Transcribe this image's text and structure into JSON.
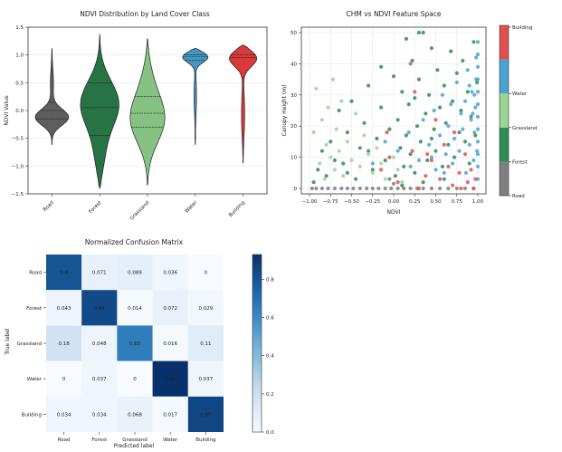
{
  "violin": {
    "type": "violin",
    "title": "NDVI Distribution by Land Cover Class",
    "ylabel": "NDVI Value",
    "ylim": [
      -1.5,
      1.5
    ],
    "yticks": [
      -1.5,
      -1.0,
      -0.5,
      0.0,
      0.5,
      1.0,
      1.5
    ],
    "ytick_labels": [
      "−1.5",
      "−1.0",
      "−0.5",
      "0.0",
      "0.5",
      "1.0",
      "1.5"
    ],
    "categories": [
      "Road",
      "Forest",
      "Grassland",
      "Water",
      "Building"
    ],
    "colors": [
      "#555555",
      "#1b6b3a",
      "#7fbf7b",
      "#3b8fbf",
      "#d62f2f"
    ],
    "quartiles": [
      [
        -0.15,
        0.0,
        0.15
      ],
      [
        -0.45,
        0.05,
        0.5
      ],
      [
        -0.3,
        -0.05,
        0.25
      ],
      [
        0.9,
        0.97,
        1.0
      ],
      [
        0.6,
        0.95,
        1.0
      ]
    ],
    "ranges": [
      [
        -0.62,
        1.12
      ],
      [
        -1.4,
        1.38
      ],
      [
        -1.35,
        1.3
      ],
      [
        -0.62,
        1.12
      ],
      [
        -0.95,
        1.18
      ]
    ]
  },
  "scatter": {
    "type": "scatter",
    "title": "CHM vs NDVI Feature Space",
    "xlabel": "NDVI",
    "ylabel": "Canopy Height (m)",
    "xlim": [
      -1.0,
      1.0
    ],
    "ylim": [
      0,
      50
    ],
    "xticks": [
      -1.0,
      -0.75,
      -0.5,
      -0.25,
      0.0,
      0.25,
      0.5,
      0.75,
      1.0
    ],
    "xtick_labels": [
      "−1.00",
      "−0.75",
      "−0.50",
      "−0.25",
      "0.00",
      "0.25",
      "0.50",
      "0.75",
      "1.00"
    ],
    "yticks": [
      0,
      10,
      20,
      30,
      40,
      50
    ],
    "ytick_labels": [
      "0",
      "10",
      "20",
      "30",
      "40",
      "50"
    ],
    "colorbar_labels": [
      "Road",
      "Forest",
      "Grassland",
      "Water",
      "Building"
    ],
    "colorbar_colors": [
      "#7f7f7f",
      "#2e8b57",
      "#98d694",
      "#4aa3d0",
      "#e05050"
    ],
    "series": [
      {
        "name": "Road",
        "color": "#7f7f7f",
        "points": [
          [
            -0.97,
            0
          ],
          [
            -0.92,
            0
          ],
          [
            -0.85,
            0
          ],
          [
            -0.78,
            0
          ],
          [
            -0.7,
            0
          ],
          [
            -0.62,
            0
          ],
          [
            -0.55,
            0
          ],
          [
            -0.48,
            0
          ],
          [
            -0.4,
            0
          ],
          [
            -0.32,
            0
          ],
          [
            -0.25,
            0
          ],
          [
            -0.18,
            0
          ],
          [
            -0.1,
            0
          ],
          [
            -0.03,
            0
          ],
          [
            0.05,
            0
          ],
          [
            0.12,
            0
          ],
          [
            0.2,
            0
          ],
          [
            0.28,
            0
          ],
          [
            0.35,
            0
          ],
          [
            0.45,
            0
          ],
          [
            0.55,
            0
          ],
          [
            0.65,
            0
          ],
          [
            0.75,
            0
          ],
          [
            0.85,
            0
          ],
          [
            0.95,
            0
          ],
          [
            0.0,
            1.5
          ],
          [
            -0.05,
            3
          ]
        ]
      },
      {
        "name": "Forest",
        "color": "#2e8b57",
        "points": [
          [
            -0.95,
            2
          ],
          [
            -0.9,
            6
          ],
          [
            -0.85,
            12
          ],
          [
            -0.8,
            4
          ],
          [
            -0.75,
            15
          ],
          [
            -0.7,
            9
          ],
          [
            -0.65,
            25
          ],
          [
            -0.6,
            8
          ],
          [
            -0.55,
            18
          ],
          [
            -0.5,
            28
          ],
          [
            -0.45,
            3
          ],
          [
            -0.4,
            13
          ],
          [
            -0.35,
            21
          ],
          [
            -0.3,
            33
          ],
          [
            -0.25,
            6
          ],
          [
            -0.2,
            16
          ],
          [
            -0.15,
            26
          ],
          [
            -0.1,
            9
          ],
          [
            -0.05,
            19
          ],
          [
            0.0,
            36
          ],
          [
            0.02,
            4
          ],
          [
            0.05,
            22
          ],
          [
            0.08,
            13
          ],
          [
            0.1,
            31
          ],
          [
            0.12,
            7
          ],
          [
            0.15,
            17
          ],
          [
            0.18,
            27
          ],
          [
            0.2,
            11
          ],
          [
            0.22,
            41
          ],
          [
            0.25,
            5
          ],
          [
            0.28,
            20
          ],
          [
            0.3,
            35
          ],
          [
            0.32,
            15
          ],
          [
            0.35,
            50
          ],
          [
            0.38,
            24
          ],
          [
            0.4,
            9
          ],
          [
            0.42,
            30
          ],
          [
            0.45,
            45
          ],
          [
            0.48,
            19
          ],
          [
            0.5,
            12
          ],
          [
            0.52,
            38
          ],
          [
            0.55,
            26
          ],
          [
            0.58,
            7
          ],
          [
            0.6,
            33
          ],
          [
            0.62,
            21
          ],
          [
            0.65,
            14
          ],
          [
            0.68,
            44
          ],
          [
            0.7,
            28
          ],
          [
            0.72,
            10
          ],
          [
            0.75,
            37
          ],
          [
            0.78,
            18
          ],
          [
            0.8,
            25
          ],
          [
            0.82,
            41
          ],
          [
            0.85,
            15
          ],
          [
            0.88,
            31
          ],
          [
            0.9,
            8
          ],
          [
            0.92,
            23
          ],
          [
            0.95,
            47
          ],
          [
            0.97,
            17
          ],
          [
            0.99,
            34
          ],
          [
            0.3,
            50
          ],
          [
            0.15,
            48
          ],
          [
            -0.15,
            39
          ],
          [
            0.6,
            3
          ],
          [
            0.35,
            2
          ],
          [
            0.1,
            1
          ],
          [
            -0.3,
            12
          ],
          [
            -0.55,
            5
          ],
          [
            0.25,
            29
          ],
          [
            0.45,
            16
          ]
        ]
      },
      {
        "name": "Grassland",
        "color": "#98d694",
        "points": [
          [
            -0.95,
            18
          ],
          [
            -0.92,
            32
          ],
          [
            -0.88,
            8
          ],
          [
            -0.85,
            22
          ],
          [
            -0.82,
            3
          ],
          [
            -0.8,
            14
          ],
          [
            -0.78,
            26
          ],
          [
            -0.75,
            10
          ],
          [
            -0.72,
            35
          ],
          [
            -0.7,
            6
          ],
          [
            -0.68,
            19
          ],
          [
            -0.65,
            12
          ],
          [
            -0.62,
            28
          ],
          [
            -0.6,
            4
          ],
          [
            -0.55,
            15
          ],
          [
            -0.5,
            9
          ],
          [
            -0.45,
            24
          ],
          [
            -0.4,
            7
          ],
          [
            -0.35,
            17
          ],
          [
            -0.3,
            11
          ],
          [
            -0.25,
            5
          ],
          [
            -0.2,
            13
          ],
          [
            -0.15,
            8
          ],
          [
            -0.1,
            3
          ],
          [
            0.0,
            10
          ],
          [
            0.05,
            6
          ],
          [
            0.1,
            2
          ]
        ]
      },
      {
        "name": "Water",
        "color": "#4aa3d0",
        "points": [
          [
            -0.25,
            8
          ],
          [
            -0.1,
            15
          ],
          [
            0.05,
            12
          ],
          [
            0.18,
            18
          ],
          [
            0.3,
            9
          ],
          [
            0.35,
            22
          ],
          [
            0.42,
            14
          ],
          [
            0.48,
            25
          ],
          [
            0.5,
            6
          ],
          [
            0.55,
            17
          ],
          [
            0.58,
            30
          ],
          [
            0.62,
            11
          ],
          [
            0.65,
            20
          ],
          [
            0.68,
            27
          ],
          [
            0.7,
            8
          ],
          [
            0.72,
            16
          ],
          [
            0.75,
            34
          ],
          [
            0.78,
            12
          ],
          [
            0.8,
            24
          ],
          [
            0.82,
            19
          ],
          [
            0.85,
            28
          ],
          [
            0.86,
            5
          ],
          [
            0.88,
            38
          ],
          [
            0.9,
            14
          ],
          [
            0.92,
            22
          ],
          [
            0.93,
            31
          ],
          [
            0.95,
            9
          ],
          [
            0.96,
            18
          ],
          [
            0.97,
            26
          ],
          [
            0.98,
            42
          ],
          [
            0.99,
            12
          ],
          [
            1.0,
            3
          ],
          [
            1.0,
            7
          ],
          [
            1.0,
            11
          ],
          [
            1.0,
            15
          ],
          [
            1.0,
            19
          ],
          [
            1.0,
            23
          ],
          [
            1.0,
            27
          ],
          [
            1.0,
            31
          ],
          [
            1.0,
            35
          ],
          [
            1.0,
            39
          ],
          [
            1.0,
            43
          ],
          [
            1.0,
            47
          ],
          [
            0.98,
            35
          ],
          [
            0.96,
            30
          ],
          [
            0.94,
            24
          ],
          [
            0.9,
            33
          ],
          [
            0.6,
            5
          ],
          [
            0.45,
            10
          ],
          [
            0.2,
            7
          ]
        ]
      },
      {
        "name": "Building",
        "color": "#e05050",
        "points": [
          [
            -0.15,
            6
          ],
          [
            -0.05,
            10
          ],
          [
            0.05,
            2
          ],
          [
            0.2,
            40
          ],
          [
            0.22,
            12
          ],
          [
            0.3,
            0
          ],
          [
            0.38,
            4
          ],
          [
            0.45,
            9
          ],
          [
            0.5,
            22
          ],
          [
            0.55,
            3
          ],
          [
            0.6,
            14
          ],
          [
            0.65,
            7
          ],
          [
            0.7,
            1
          ],
          [
            0.72,
            18
          ],
          [
            0.78,
            5
          ],
          [
            0.8,
            0
          ],
          [
            0.85,
            11
          ],
          [
            0.88,
            2
          ],
          [
            0.92,
            6
          ],
          [
            0.95,
            0
          ],
          [
            0.97,
            3
          ],
          [
            -0.08,
            18
          ],
          [
            0.25,
            31
          ],
          [
            0.4,
            11
          ]
        ]
      }
    ]
  },
  "confusion": {
    "type": "heatmap",
    "title": "Normalized Confusion Matrix",
    "xlabel": "Predicted label",
    "ylabel": "True label",
    "labels": [
      "Road",
      "Forest",
      "Grassland",
      "Water",
      "Building"
    ],
    "matrix": [
      [
        0.8,
        0.071,
        0.089,
        0.036,
        0
      ],
      [
        0.043,
        0.84,
        0.014,
        0.072,
        0.029
      ],
      [
        0.18,
        0.048,
        0.65,
        0.016,
        0.11
      ],
      [
        0,
        0.037,
        0,
        0.93,
        0.037
      ],
      [
        0.034,
        0.034,
        0.068,
        0.017,
        0.85
      ]
    ],
    "cell_labels": [
      [
        "0.8",
        "0.071",
        "0.089",
        "0.036",
        "0"
      ],
      [
        "0.043",
        "0.84",
        "0.014",
        "0.072",
        "0.029"
      ],
      [
        "0.18",
        "0.048",
        "0.65",
        "0.016",
        "0.11"
      ],
      [
        "0",
        "0.037",
        "0",
        "0.93",
        "0.037"
      ],
      [
        "0.034",
        "0.034",
        "0.068",
        "0.017",
        "0.85"
      ]
    ],
    "colorbar_ticks": [
      0.0,
      0.2,
      0.4,
      0.6,
      0.8
    ],
    "colorbar_tick_labels": [
      "0.0",
      "0.2",
      "0.4",
      "0.6",
      "0.8"
    ],
    "vmin": 0,
    "vmax": 0.93
  }
}
